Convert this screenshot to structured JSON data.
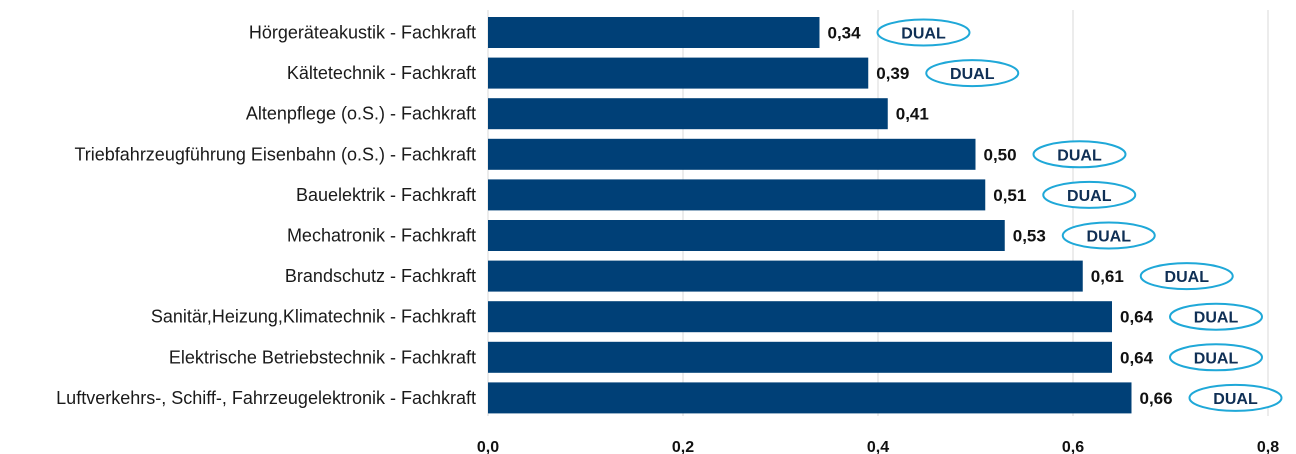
{
  "chart_data": {
    "type": "bar",
    "orientation": "horizontal",
    "categories": [
      "Hörgeräteakustik - Fachkraft",
      "Kältetechnik - Fachkraft",
      "Altenpflege (o.S.) - Fachkraft",
      "Triebfahrzeugführung Eisenbahn (o.S.) - Fachkraft",
      "Bauelektrik - Fachkraft",
      "Mechatronik - Fachkraft",
      "Brandschutz - Fachkraft",
      "Sanitär,Heizung,Klimatechnik - Fachkraft",
      "Elektrische Betriebstechnik - Fachkraft",
      "Luftverkehrs-, Schiff-, Fahrzeugelektronik - Fachkraft"
    ],
    "values": [
      0.34,
      0.39,
      0.41,
      0.5,
      0.51,
      0.53,
      0.61,
      0.64,
      0.64,
      0.66
    ],
    "value_labels": [
      "0,34",
      "0,39",
      "0,41",
      "0,50",
      "0,51",
      "0,53",
      "0,61",
      "0,64",
      "0,64",
      "0,66"
    ],
    "badges": [
      "DUAL",
      "DUAL",
      "",
      "DUAL",
      "DUAL",
      "DUAL",
      "DUAL",
      "DUAL",
      "DUAL",
      "DUAL"
    ],
    "xlim": [
      0,
      0.8
    ],
    "x_ticks": [
      0,
      0.2,
      0.4,
      0.6,
      0.8
    ],
    "x_tick_labels": [
      "0,0",
      "0,2",
      "0,4",
      "0,6",
      "0,8"
    ],
    "grid": true,
    "bar_color": "#004077",
    "badge_border_color": "#1fa8d8",
    "grid_color": "#d9d9d9"
  }
}
